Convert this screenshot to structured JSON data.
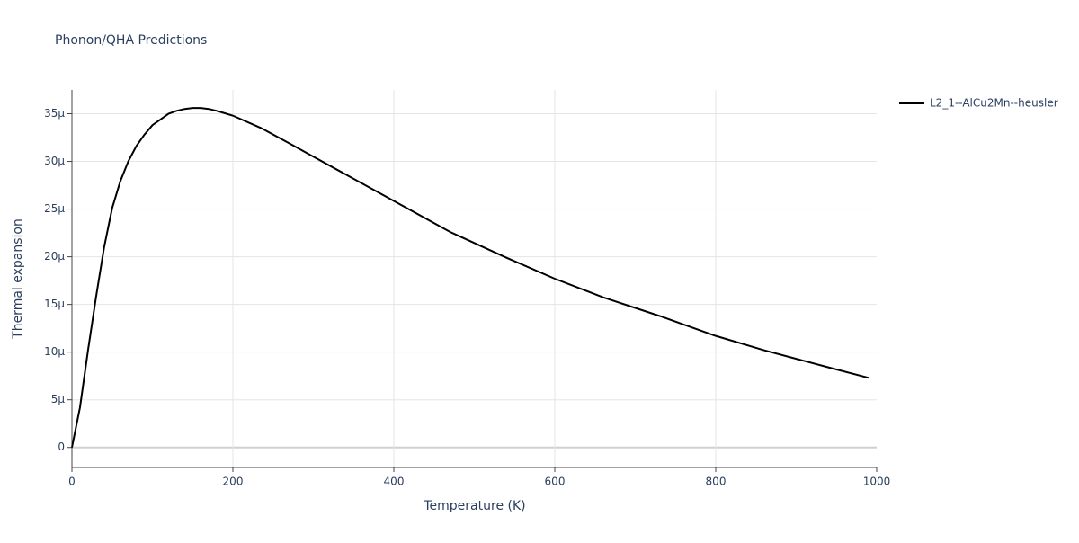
{
  "chart_data": {
    "type": "line",
    "title": "Phonon/QHA Predictions",
    "x_label": "Temperature (K)",
    "y_label": "Thermal expansion",
    "x": [
      0,
      10,
      20,
      30,
      40,
      50,
      60,
      70,
      80,
      90,
      100,
      110,
      120,
      130,
      140,
      150,
      160,
      170,
      180,
      200,
      235,
      270,
      300,
      400,
      470,
      540,
      600,
      660,
      730,
      800,
      860,
      940,
      990
    ],
    "series": [
      {
        "name": "L2_1--AlCu2Mn--heusler",
        "color": "#000000",
        "values": [
          0,
          4.2,
          10.2,
          15.8,
          21,
          25.1,
          27.9,
          30,
          31.6,
          32.8,
          33.8,
          34.4,
          35,
          35.3,
          35.5,
          35.6,
          35.6,
          35.5,
          35.3,
          34.8,
          33.5,
          31.9,
          30.5,
          25.85,
          22.6,
          19.9,
          17.7,
          15.75,
          13.8,
          11.7,
          10.2,
          8.4,
          7.3
        ]
      }
    ],
    "xlim": [
      0,
      1000
    ],
    "xticks": [
      0,
      200,
      400,
      600,
      800,
      1000
    ],
    "ylim": [
      -2.1,
      37.5
    ],
    "yticks": [
      0,
      {
        "value": 5,
        "label": "5μ"
      },
      {
        "value": 10,
        "label": "10μ"
      },
      {
        "value": 15,
        "label": "15μ"
      },
      {
        "value": 20,
        "label": "20μ"
      },
      {
        "value": 25,
        "label": "25μ"
      },
      {
        "value": 30,
        "label": "30μ"
      },
      {
        "value": 35,
        "label": "35μ"
      }
    ],
    "grid": true,
    "legend": "right"
  }
}
